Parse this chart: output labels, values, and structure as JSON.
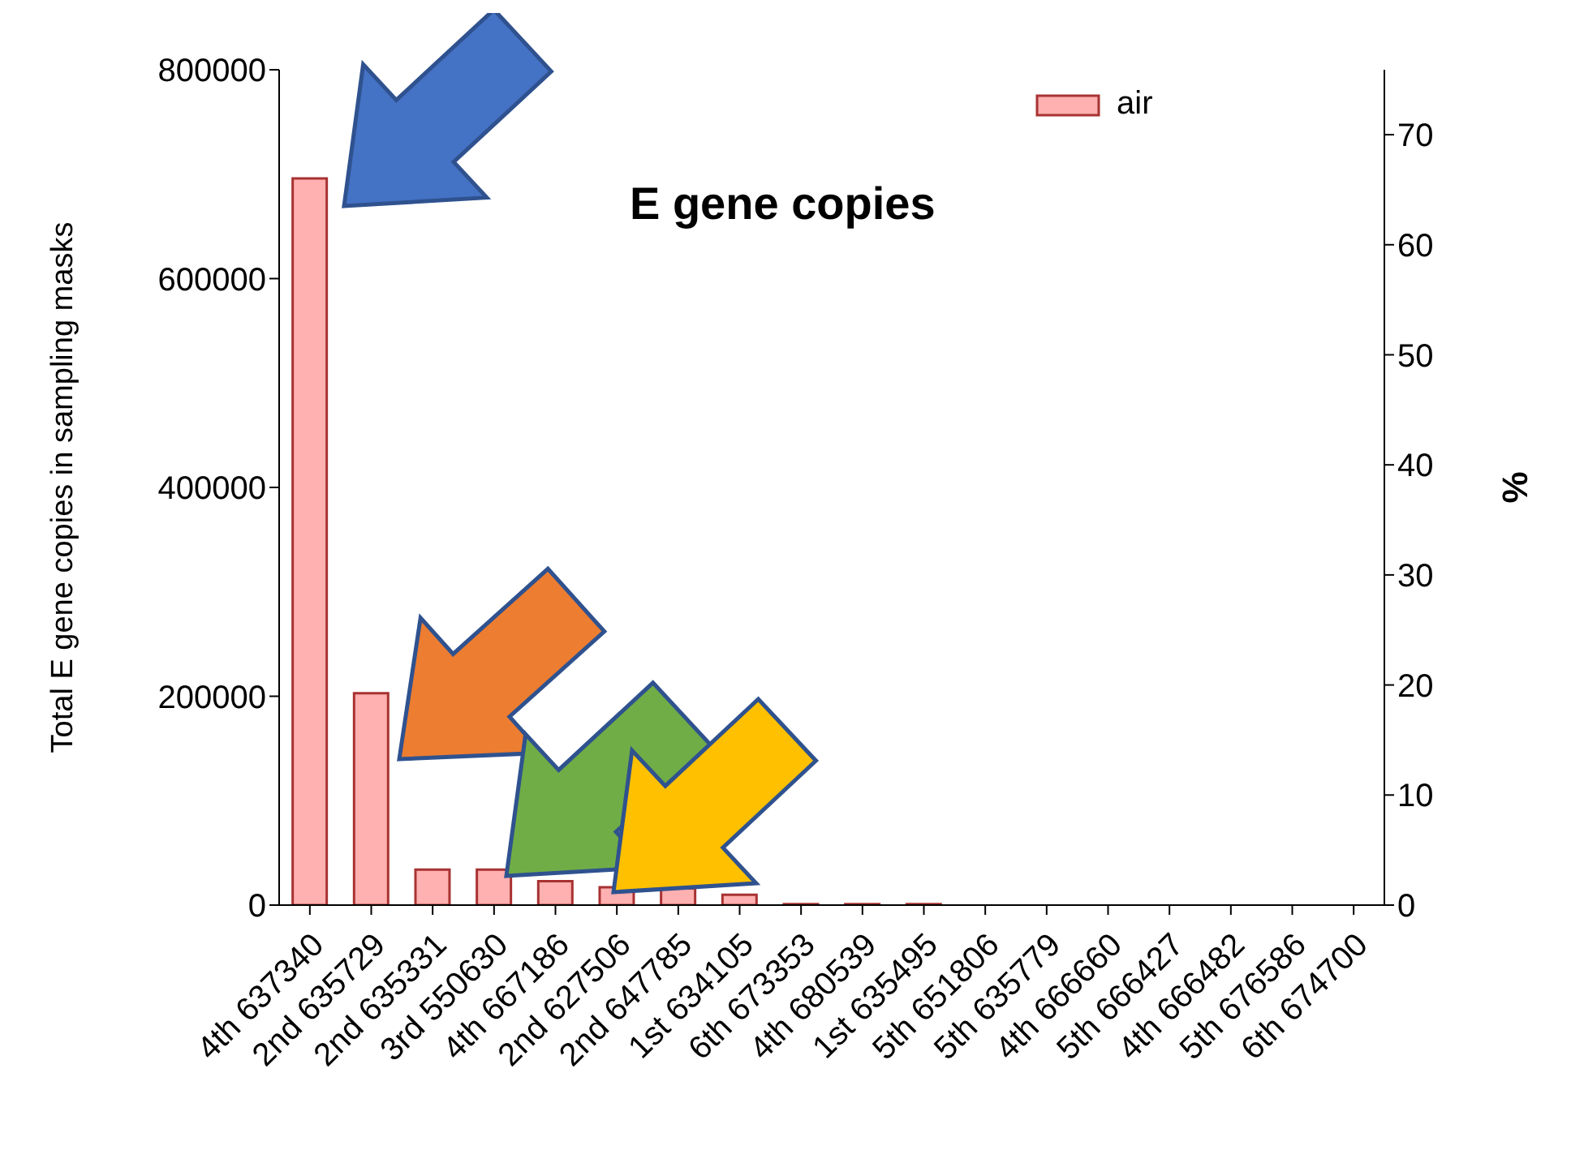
{
  "chart_data": {
    "type": "bar",
    "title": "E gene copies",
    "ylabel": "Total E gene copies in sampling masks",
    "y2label": "%",
    "categories": [
      "4th 637340",
      "2nd 635729",
      "2nd 635331",
      "3rd 550630",
      "4th 667186",
      "2nd 627506",
      "2nd 647785",
      "1st 634105",
      "6th 673353",
      "4th 680539",
      "1st 635495",
      "5th 651806",
      "5th 635779",
      "4th 666660",
      "5th 666427",
      "4th 666482",
      "5th 676586",
      "6th 674700"
    ],
    "series": [
      {
        "name": "air",
        "color": "#ffb0b0",
        "values": [
          696000,
          203000,
          34000,
          34000,
          23000,
          17000,
          16000,
          10000,
          1000,
          1000,
          1000,
          0,
          0,
          0,
          0,
          0,
          0,
          0
        ]
      }
    ],
    "ylim": [
      0,
      800000
    ],
    "yticks": [
      0,
      200000,
      400000,
      600000,
      800000
    ],
    "y2lim": [
      0,
      75.9
    ],
    "y2ticks": [
      0,
      10,
      20,
      30,
      40,
      50,
      60,
      70
    ],
    "legend": "top right"
  }
}
